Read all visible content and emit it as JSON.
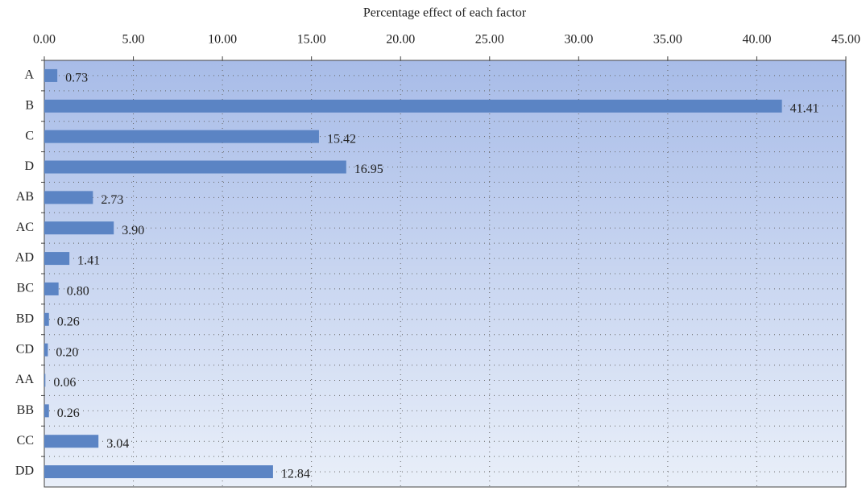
{
  "chart_data": {
    "type": "barh",
    "x_label": "Percentage effect of each factor",
    "categories": [
      "A",
      "B",
      "C",
      "D",
      "AB",
      "AC",
      "AD",
      "BC",
      "BD",
      "CD",
      "AA",
      "BB",
      "CC",
      "DD"
    ],
    "values": [
      0.73,
      41.41,
      15.42,
      16.95,
      2.73,
      3.9,
      1.41,
      0.8,
      0.26,
      0.2,
      0.06,
      0.26,
      3.04,
      12.84
    ],
    "value_labels": [
      "0.73",
      "41.41",
      "15.42",
      "16.95",
      "2.73",
      "3.90",
      "1.41",
      "0.80",
      "0.26",
      "0.20",
      "0.06",
      "0.26",
      "3.04",
      "12.84"
    ],
    "color": "#5b84c4",
    "xlim": [
      0,
      45
    ],
    "xticks": [
      {
        "value": 0,
        "label": "0.00"
      },
      {
        "value": 5,
        "label": "5.00"
      },
      {
        "value": 10,
        "label": "10.00"
      },
      {
        "value": 15,
        "label": "15.00"
      },
      {
        "value": 20,
        "label": "20.00"
      },
      {
        "value": 25,
        "label": "25.00"
      },
      {
        "value": 30,
        "label": "30.00"
      },
      {
        "value": 35,
        "label": "35.00"
      },
      {
        "value": 40,
        "label": "40.00"
      },
      {
        "value": 45,
        "label": "45.00"
      }
    ],
    "grid": true
  }
}
